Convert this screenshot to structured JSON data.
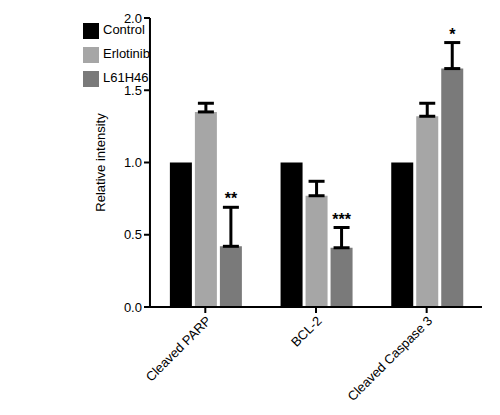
{
  "chart_data": {
    "type": "bar",
    "y_label": "Relative intensity",
    "categories": [
      "Cleaved PARP",
      "BCL-2",
      "Cleaved Caspase 3"
    ],
    "series": [
      {
        "name": "Control",
        "color": "#000000",
        "values": [
          1.0,
          1.0,
          1.0
        ]
      },
      {
        "name": "Erlotinib",
        "color": "#a6a6a6",
        "values": [
          1.35,
          0.77,
          1.32
        ],
        "errors": [
          0.06,
          0.1,
          0.09
        ]
      },
      {
        "name": "L61H46",
        "color": "#7a7a7a",
        "values": [
          0.42,
          0.41,
          1.65
        ],
        "errors": [
          0.27,
          0.14,
          0.18
        ],
        "annotations": [
          "**",
          "***",
          "*"
        ]
      }
    ],
    "ylim": [
      0,
      2
    ],
    "yticks": [
      {
        "value": 0,
        "label": "0.0"
      },
      0.5,
      {
        "value": 1,
        "label": "1.0"
      },
      1.5,
      {
        "value": 2,
        "label": "2.0"
      }
    ],
    "legend": "upper left",
    "grid": false
  }
}
